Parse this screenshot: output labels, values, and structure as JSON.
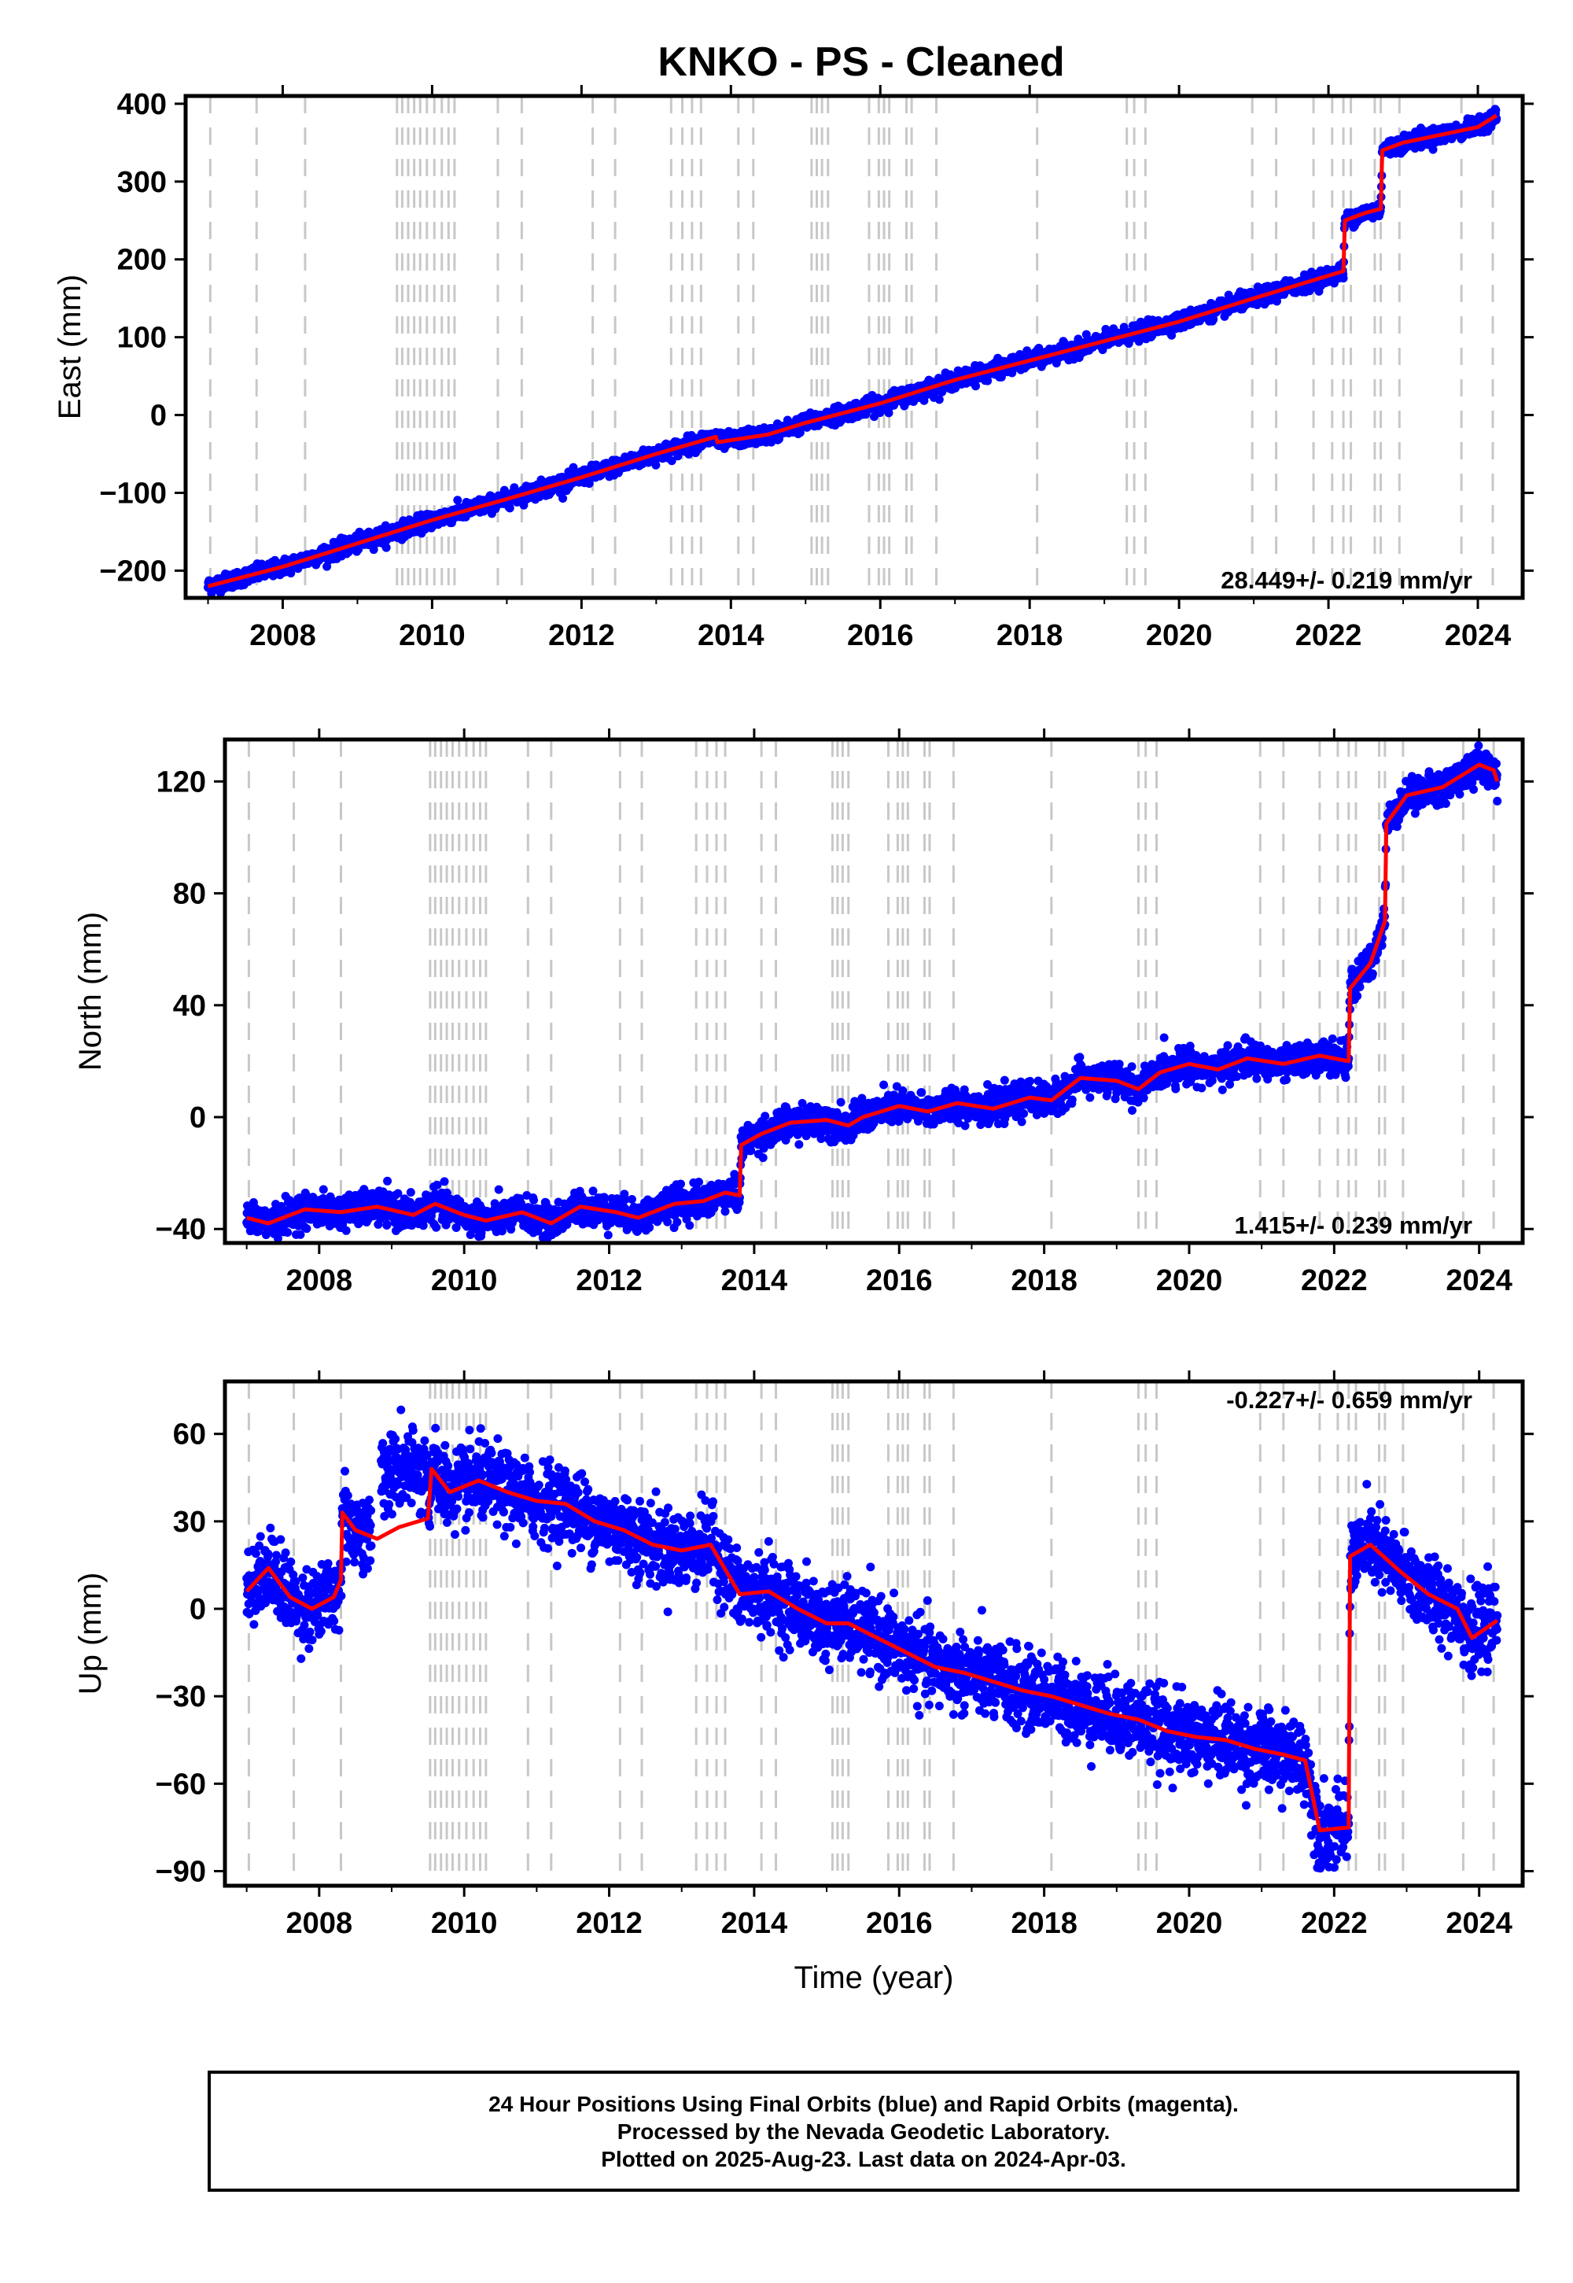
{
  "title": "KNKO  - PS - Cleaned",
  "caption": {
    "line1": "24 Hour Positions Using Final Orbits (blue) and Rapid Orbits (magenta).",
    "line2": "Processed by the Nevada Geodetic Laboratory.",
    "line3": "Plotted on 2025-Aug-23. Last data on 2024-Apr-03."
  },
  "colors": {
    "data": "#0000ff",
    "model": "#ff0000",
    "gridline": "#c8c8c8",
    "axes": "#000000"
  },
  "chart_data": [
    {
      "type": "scatter",
      "ylabel": "East (mm)",
      "xlabel": "",
      "xlim": [
        2006.7,
        2024.6
      ],
      "ylim": [
        -235,
        410
      ],
      "xticks": [
        2008,
        2010,
        2012,
        2014,
        2016,
        2018,
        2020,
        2022,
        2024
      ],
      "xtick_labels": [
        "2008",
        "2010",
        "2012",
        "2014",
        "2016",
        "2018",
        "2020",
        "2022",
        "2024"
      ],
      "yticks": [
        -200,
        -100,
        0,
        100,
        200,
        300,
        400
      ],
      "ytick_labels": [
        "−200",
        "−100",
        "0",
        "100",
        "200",
        "300",
        "400"
      ],
      "rate_label": "28.449+/- 0.219 mm/yr",
      "rate_position": "bottom-right",
      "data_points_description_series": "daily positions (blue)",
      "trend": {
        "x": [
          2007.0,
          2008.0,
          2009.0,
          2010.0,
          2011.0,
          2012.0,
          2013.0,
          2013.8,
          2013.82,
          2014.5,
          2015.0,
          2016.0,
          2017.0,
          2018.0,
          2019.0,
          2020.0,
          2021.0,
          2022.2,
          2022.22,
          2022.5,
          2022.7,
          2022.72,
          2023.0,
          2024.0,
          2024.25
        ],
        "y": [
          -220,
          -195,
          -165,
          -135,
          -108,
          -80,
          -50,
          -28,
          -35,
          -25,
          -10,
          15,
          45,
          70,
          95,
          120,
          150,
          185,
          250,
          260,
          265,
          340,
          350,
          370,
          385
        ]
      },
      "noise": 5,
      "vlines": [
        2007.03,
        2007.65,
        2008.3,
        2009.53,
        2009.6,
        2009.68,
        2009.76,
        2009.84,
        2009.93,
        2010.03,
        2010.13,
        2010.22,
        2010.3,
        2010.88,
        2011.2,
        2012.15,
        2012.45,
        2013.2,
        2013.35,
        2013.48,
        2013.6,
        2014.1,
        2014.3,
        2015.08,
        2015.15,
        2015.22,
        2015.3,
        2015.85,
        2015.98,
        2016.05,
        2016.12,
        2016.35,
        2016.42,
        2016.75,
        2018.1,
        2019.3,
        2019.4,
        2019.55,
        2020.98,
        2021.3,
        2021.8,
        2022.05,
        2022.2,
        2022.3,
        2022.62,
        2022.7,
        2022.95,
        2023.78,
        2024.2
      ]
    },
    {
      "type": "scatter",
      "ylabel": "North (mm)",
      "xlabel": "",
      "xlim": [
        2006.7,
        2024.6
      ],
      "ylim": [
        -45,
        135
      ],
      "xticks": [
        2008,
        2010,
        2012,
        2014,
        2016,
        2018,
        2020,
        2022,
        2024
      ],
      "xtick_labels": [
        "2008",
        "2010",
        "2012",
        "2014",
        "2016",
        "2018",
        "2020",
        "2022",
        "2024"
      ],
      "yticks": [
        -40,
        0,
        40,
        80,
        120
      ],
      "ytick_labels": [
        "−40",
        "0",
        "40",
        "80",
        "120"
      ],
      "rate_label": "1.415+/- 0.239 mm/yr",
      "rate_position": "bottom-right",
      "trend": {
        "x": [
          2007.0,
          2007.3,
          2007.8,
          2008.3,
          2008.8,
          2009.3,
          2009.6,
          2010.0,
          2010.3,
          2010.8,
          2011.2,
          2011.6,
          2012.1,
          2012.4,
          2012.9,
          2013.3,
          2013.6,
          2013.8,
          2013.82,
          2014.1,
          2014.5,
          2015.0,
          2015.3,
          2015.5,
          2016.0,
          2016.4,
          2016.8,
          2017.3,
          2017.8,
          2018.1,
          2018.5,
          2019.0,
          2019.3,
          2019.6,
          2020.0,
          2020.4,
          2020.8,
          2021.3,
          2021.8,
          2022.2,
          2022.22,
          2022.5,
          2022.7,
          2022.72,
          2023.0,
          2023.5,
          2024.0,
          2024.2,
          2024.25
        ],
        "y": [
          -36,
          -38,
          -33,
          -34,
          -32,
          -35,
          -31,
          -35,
          -37,
          -34,
          -38,
          -32,
          -34,
          -36,
          -31,
          -30,
          -27,
          -28,
          -10,
          -6,
          -2,
          -1,
          -3,
          0,
          4,
          2,
          5,
          3,
          7,
          6,
          14,
          13,
          10,
          16,
          19,
          17,
          21,
          19,
          22,
          20,
          46,
          55,
          70,
          105,
          115,
          118,
          126,
          124,
          120
        ]
      },
      "noise": 2.8,
      "vlines": [
        2007.03,
        2007.65,
        2008.3,
        2009.53,
        2009.6,
        2009.68,
        2009.76,
        2009.84,
        2009.93,
        2010.03,
        2010.13,
        2010.22,
        2010.3,
        2010.88,
        2011.2,
        2012.15,
        2012.45,
        2013.2,
        2013.35,
        2013.48,
        2013.6,
        2014.1,
        2014.3,
        2015.08,
        2015.15,
        2015.22,
        2015.3,
        2015.85,
        2015.98,
        2016.05,
        2016.12,
        2016.35,
        2016.42,
        2016.75,
        2018.1,
        2019.3,
        2019.4,
        2019.55,
        2020.98,
        2021.3,
        2021.8,
        2022.05,
        2022.2,
        2022.3,
        2022.62,
        2022.7,
        2022.95,
        2023.78,
        2024.2
      ]
    },
    {
      "type": "scatter",
      "ylabel": "Up (mm)",
      "xlabel": "Time (year)",
      "xlim": [
        2006.7,
        2024.6
      ],
      "ylim": [
        -95,
        78
      ],
      "xticks": [
        2008,
        2010,
        2012,
        2014,
        2016,
        2018,
        2020,
        2022,
        2024
      ],
      "xtick_labels": [
        "2008",
        "2010",
        "2012",
        "2014",
        "2016",
        "2018",
        "2020",
        "2022",
        "2024"
      ],
      "yticks": [
        -90,
        -60,
        -30,
        0,
        30,
        60
      ],
      "ytick_labels": [
        "−90",
        "−60",
        "−30",
        "0",
        "30",
        "60"
      ],
      "rate_label": "-0.227+/- 0.659 mm/yr",
      "rate_position": "top-right",
      "data_gap": [
        2008.7,
        2008.8
      ],
      "trend": {
        "x": [
          2007.0,
          2007.3,
          2007.6,
          2007.9,
          2008.2,
          2008.3,
          2008.32,
          2008.5,
          2008.8,
          2009.1,
          2009.5,
          2009.55,
          2009.8,
          2010.2,
          2010.6,
          2011.0,
          2011.4,
          2011.8,
          2012.2,
          2012.6,
          2013.0,
          2013.4,
          2013.8,
          2014.2,
          2014.6,
          2015.0,
          2015.3,
          2015.7,
          2016.1,
          2016.5,
          2016.9,
          2017.3,
          2017.7,
          2018.1,
          2018.5,
          2018.9,
          2019.3,
          2019.7,
          2020.1,
          2020.5,
          2020.9,
          2021.3,
          2021.6,
          2021.8,
          2022.2,
          2022.22,
          2022.5,
          2022.9,
          2023.3,
          2023.7,
          2023.9,
          2024.25
        ],
        "y": [
          6,
          14,
          4,
          0,
          4,
          10,
          33,
          27,
          24,
          28,
          31,
          48,
          40,
          44,
          40,
          37,
          36,
          30,
          27,
          22,
          20,
          22,
          5,
          6,
          0,
          -5,
          -5,
          -10,
          -15,
          -20,
          -22,
          -25,
          -28,
          -30,
          -33,
          -36,
          -38,
          -42,
          -44,
          -45,
          -48,
          -50,
          -52,
          -76,
          -75,
          18,
          22,
          13,
          5,
          0,
          -10,
          -4
        ]
      },
      "noise": 6.5,
      "vlines": [
        2007.03,
        2007.65,
        2008.3,
        2009.53,
        2009.6,
        2009.68,
        2009.76,
        2009.84,
        2009.93,
        2010.03,
        2010.13,
        2010.22,
        2010.3,
        2010.88,
        2011.2,
        2012.15,
        2012.45,
        2013.2,
        2013.35,
        2013.48,
        2013.6,
        2014.1,
        2014.3,
        2015.08,
        2015.15,
        2015.22,
        2015.3,
        2015.85,
        2015.98,
        2016.05,
        2016.12,
        2016.35,
        2016.42,
        2016.75,
        2018.1,
        2019.3,
        2019.4,
        2019.55,
        2020.98,
        2021.3,
        2021.8,
        2022.05,
        2022.2,
        2022.3,
        2022.62,
        2022.7,
        2022.95,
        2023.78,
        2024.2
      ]
    }
  ]
}
